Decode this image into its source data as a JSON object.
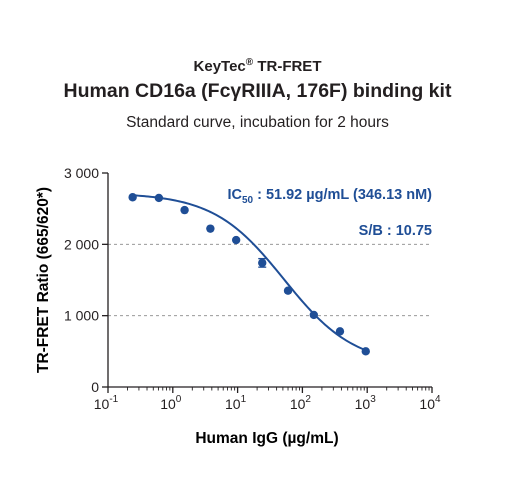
{
  "header": {
    "brand": "KeyTec",
    "brand_mark": "®",
    "brand_suffix": " TR-FRET",
    "kit_title": "Human CD16a (FcγRIIIA, 176F) binding kit",
    "subtitle": "Standard curve,  incubation for 2 hours"
  },
  "annotations": {
    "ic50_prefix": "IC",
    "ic50_sub": "50",
    "ic50_text": " : 51.92 µg/mL (346.13 nM)",
    "sb_text": "S/B : 10.75"
  },
  "colors": {
    "series": "#1f4e96",
    "axis": "#231f20",
    "grid": "#8a8a8a"
  },
  "chart_data": {
    "type": "scatter",
    "xlabel": "Human IgG  (µg/mL)",
    "ylabel": "TR-FRET Ratio (665/620*)",
    "x_scale": "log",
    "xlim": [
      0.1,
      10000
    ],
    "ylim": [
      0,
      3000
    ],
    "x_ticks": [
      {
        "value": 0.1,
        "base": "10",
        "exp": "-1"
      },
      {
        "value": 1,
        "base": "10",
        "exp": "0"
      },
      {
        "value": 10,
        "base": "10",
        "exp": "1"
      },
      {
        "value": 100,
        "base": "10",
        "exp": "2"
      },
      {
        "value": 1000,
        "base": "10",
        "exp": "3"
      },
      {
        "value": 10000,
        "base": "10",
        "exp": "4"
      }
    ],
    "y_ticks": [
      {
        "value": 0,
        "label": "0"
      },
      {
        "value": 1000,
        "label": "1 000"
      },
      {
        "value": 2000,
        "label": "2 000"
      },
      {
        "value": 3000,
        "label": "3 000"
      }
    ],
    "grid": "dashed horizontal at 1000 and 2000",
    "series": [
      {
        "points": [
          {
            "x": 0.24,
            "y": 2660
          },
          {
            "x": 0.61,
            "y": 2650
          },
          {
            "x": 1.52,
            "y": 2480
          },
          {
            "x": 3.8,
            "y": 2220
          },
          {
            "x": 9.5,
            "y": 2060
          },
          {
            "x": 24,
            "y": 1740,
            "err": 60
          },
          {
            "x": 60,
            "y": 1350
          },
          {
            "x": 150,
            "y": 1010
          },
          {
            "x": 380,
            "y": 780
          },
          {
            "x": 950,
            "y": 500
          }
        ],
        "fit": {
          "model": "4PL",
          "top": 2720,
          "bottom": 300,
          "ec50": 51.92,
          "hill": 0.8
        }
      }
    ]
  }
}
